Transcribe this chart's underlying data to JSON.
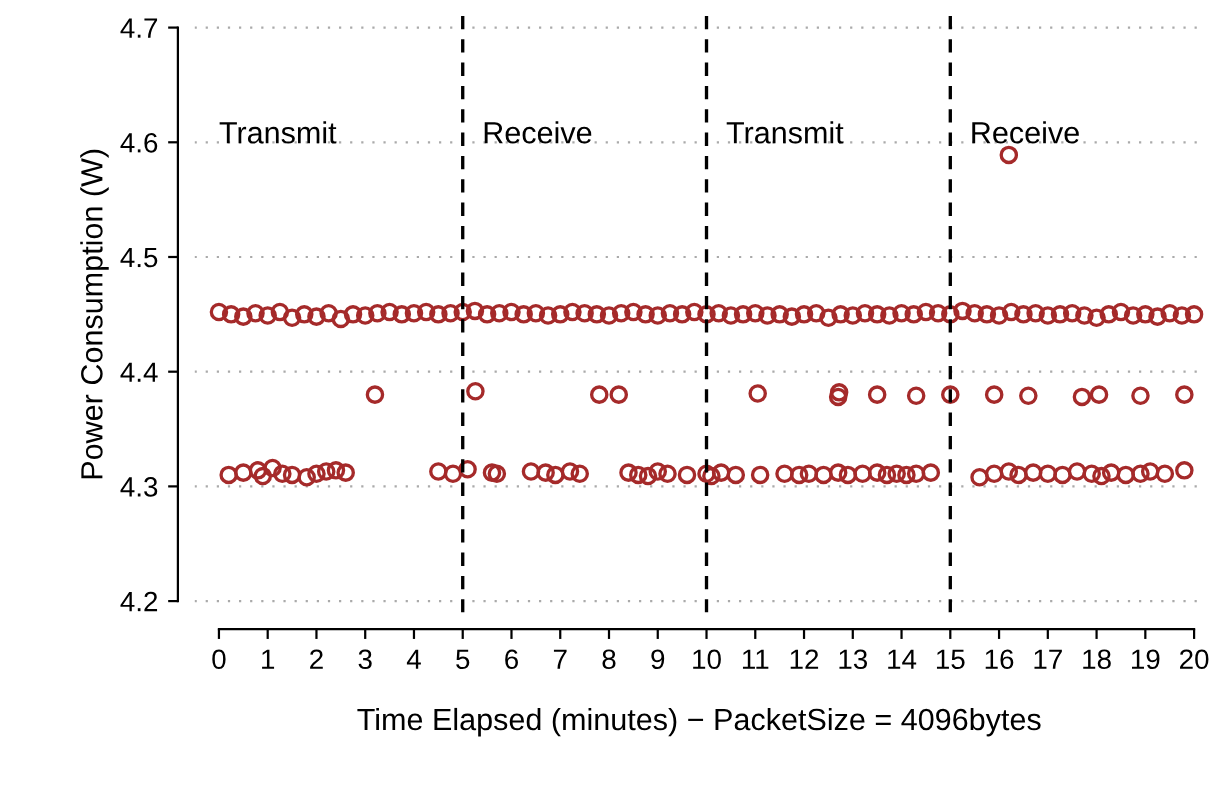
{
  "chart_data": {
    "type": "scatter",
    "xlabel": "Time Elapsed (minutes) − PacketSize = 4096bytes",
    "ylabel": "Power Consumption (W)",
    "xlim": [
      -0.5,
      20.2
    ],
    "ylim": [
      4.19,
      4.71
    ],
    "xticks": [
      0,
      1,
      2,
      3,
      4,
      5,
      6,
      7,
      8,
      9,
      10,
      11,
      12,
      13,
      14,
      15,
      16,
      17,
      18,
      19,
      20
    ],
    "yticks": [
      4.2,
      4.3,
      4.4,
      4.5,
      4.6,
      4.7
    ],
    "grid": "y",
    "marker": "circle",
    "ref_lines": [
      {
        "axis": "x",
        "value": 5,
        "line_style": "dashed",
        "color": "#000000"
      },
      {
        "axis": "x",
        "value": 10,
        "line_style": "dashed",
        "color": "#000000"
      },
      {
        "axis": "x",
        "value": 15,
        "line_style": "dashed",
        "color": "#000000"
      }
    ],
    "annotations": [
      "Transmit",
      "Receive",
      "Transmit",
      "Receive"
    ],
    "series": [
      {
        "color": "#a52a2a",
        "x": [
          0,
          0.25,
          0.5,
          0.75,
          1,
          1.25,
          1.5,
          1.75,
          2,
          2.25,
          2.5,
          2.75,
          3,
          3.25,
          3.5,
          3.75,
          4,
          4.25,
          4.5,
          4.75,
          5,
          5.25,
          5.5,
          5.75,
          6,
          6.25,
          6.5,
          6.75,
          7,
          7.25,
          7.5,
          7.75,
          8,
          8.25,
          8.5,
          8.75,
          9,
          9.25,
          9.5,
          9.75,
          10,
          10.25,
          10.5,
          10.75,
          11,
          11.25,
          11.5,
          11.75,
          12,
          12.25,
          12.5,
          12.75,
          13,
          13.25,
          13.5,
          13.75,
          14,
          14.25,
          14.5,
          14.75,
          15,
          15.25,
          15.5,
          15.75,
          16,
          16.25,
          16.5,
          16.75,
          17,
          17.25,
          17.5,
          17.75,
          18,
          18.25,
          18.5,
          18.75,
          19,
          19.25,
          19.5,
          19.75,
          20,
          0.2,
          0.5,
          0.8,
          0.9,
          1.1,
          1.3,
          1.5,
          1.8,
          2.0,
          2.2,
          2.4,
          2.6,
          4.5,
          4.8,
          5.1,
          5.6,
          5.7,
          6.4,
          6.7,
          6.9,
          7.2,
          7.4,
          8.4,
          8.6,
          8.8,
          9.0,
          9.2,
          9.6,
          10.0,
          10.1,
          10.3,
          10.6,
          11.1,
          11.6,
          11.9,
          12.1,
          12.4,
          12.7,
          12.9,
          13.2,
          13.5,
          13.7,
          13.9,
          14.1,
          14.3,
          14.6,
          15.6,
          15.9,
          16.2,
          16.4,
          16.7,
          17.0,
          17.3,
          17.6,
          17.9,
          18.1,
          18.3,
          18.6,
          18.9,
          19.1,
          19.4,
          19.8,
          3.2,
          5.26,
          7.8,
          8.2,
          11.05,
          12.7,
          12.72,
          13.5,
          14.3,
          15.0,
          15.9,
          16.6,
          17.7,
          18.05,
          18.9,
          19.8,
          16.2
        ],
        "values": [
          4.452,
          4.45,
          4.448,
          4.451,
          4.449,
          4.452,
          4.447,
          4.45,
          4.448,
          4.451,
          4.446,
          4.45,
          4.449,
          4.451,
          4.452,
          4.45,
          4.451,
          4.452,
          4.45,
          4.451,
          4.452,
          4.453,
          4.45,
          4.451,
          4.452,
          4.45,
          4.451,
          4.449,
          4.45,
          4.452,
          4.451,
          4.45,
          4.449,
          4.451,
          4.452,
          4.45,
          4.449,
          4.451,
          4.45,
          4.452,
          4.45,
          4.451,
          4.449,
          4.45,
          4.451,
          4.449,
          4.45,
          4.448,
          4.45,
          4.451,
          4.447,
          4.45,
          4.449,
          4.451,
          4.45,
          4.449,
          4.451,
          4.45,
          4.452,
          4.451,
          4.45,
          4.453,
          4.451,
          4.45,
          4.449,
          4.452,
          4.45,
          4.451,
          4.449,
          4.45,
          4.451,
          4.449,
          4.447,
          4.45,
          4.452,
          4.449,
          4.45,
          4.448,
          4.451,
          4.449,
          4.45,
          4.31,
          4.312,
          4.314,
          4.309,
          4.316,
          4.311,
          4.31,
          4.308,
          4.311,
          4.313,
          4.314,
          4.312,
          4.313,
          4.311,
          4.315,
          4.312,
          4.311,
          4.313,
          4.312,
          4.31,
          4.313,
          4.311,
          4.312,
          4.31,
          4.309,
          4.313,
          4.311,
          4.31,
          4.311,
          4.309,
          4.312,
          4.31,
          4.31,
          4.311,
          4.31,
          4.311,
          4.31,
          4.312,
          4.31,
          4.311,
          4.312,
          4.31,
          4.311,
          4.31,
          4.311,
          4.312,
          4.308,
          4.311,
          4.313,
          4.31,
          4.312,
          4.311,
          4.31,
          4.313,
          4.311,
          4.309,
          4.312,
          4.31,
          4.311,
          4.313,
          4.311,
          4.314,
          4.38,
          4.383,
          4.38,
          4.38,
          4.381,
          4.378,
          4.382,
          4.38,
          4.379,
          4.38,
          4.38,
          4.379,
          4.378,
          4.38,
          4.379,
          4.38,
          4.589
        ]
      }
    ]
  }
}
